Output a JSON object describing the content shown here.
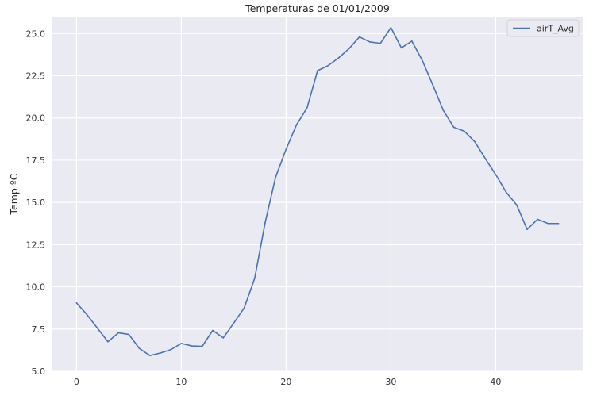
{
  "chart_data": {
    "type": "line",
    "title": "Temperaturas de 01/01/2009",
    "xlabel": "",
    "ylabel": "Temp ºC",
    "xlim": [
      -2.3,
      48.3
    ],
    "ylim": [
      5.0,
      26.0
    ],
    "x_ticks": [
      0,
      10,
      20,
      30,
      40
    ],
    "y_ticks": [
      5.0,
      7.5,
      10.0,
      12.5,
      15.0,
      17.5,
      20.0,
      22.5,
      25.0
    ],
    "x_tick_labels": [
      "0",
      "10",
      "20",
      "30",
      "40"
    ],
    "y_tick_labels": [
      "5.0",
      "7.5",
      "10.0",
      "12.5",
      "15.0",
      "17.5",
      "20.0",
      "22.5",
      "25.0"
    ],
    "grid": true,
    "legend_position": "top-right",
    "background_color": "#EAEAF2",
    "grid_color": "#FFFFFF",
    "series": [
      {
        "name": "airT_Avg",
        "color": "#4C72B0",
        "x": [
          0,
          1,
          2,
          3,
          4,
          5,
          6,
          7,
          8,
          9,
          10,
          11,
          12,
          13,
          14,
          15,
          16,
          17,
          18,
          19,
          20,
          21,
          22,
          23,
          24,
          25,
          26,
          27,
          28,
          29,
          30,
          31,
          32,
          33,
          34,
          35,
          36,
          37,
          38,
          39,
          40,
          41,
          42,
          43,
          44,
          45,
          46
        ],
        "values": [
          9.05,
          8.35,
          7.55,
          6.75,
          7.28,
          7.18,
          6.35,
          5.93,
          6.08,
          6.28,
          6.65,
          6.5,
          6.48,
          7.42,
          6.98,
          7.85,
          8.75,
          10.5,
          13.8,
          16.5,
          18.15,
          19.6,
          20.6,
          22.8,
          23.1,
          23.55,
          24.1,
          24.8,
          24.5,
          24.42,
          25.35,
          24.15,
          24.55,
          23.4,
          21.95,
          20.45,
          19.45,
          19.22,
          18.6,
          17.6,
          16.65,
          15.6,
          14.85,
          13.4,
          14.0,
          13.75,
          13.75
        ]
      }
    ]
  }
}
